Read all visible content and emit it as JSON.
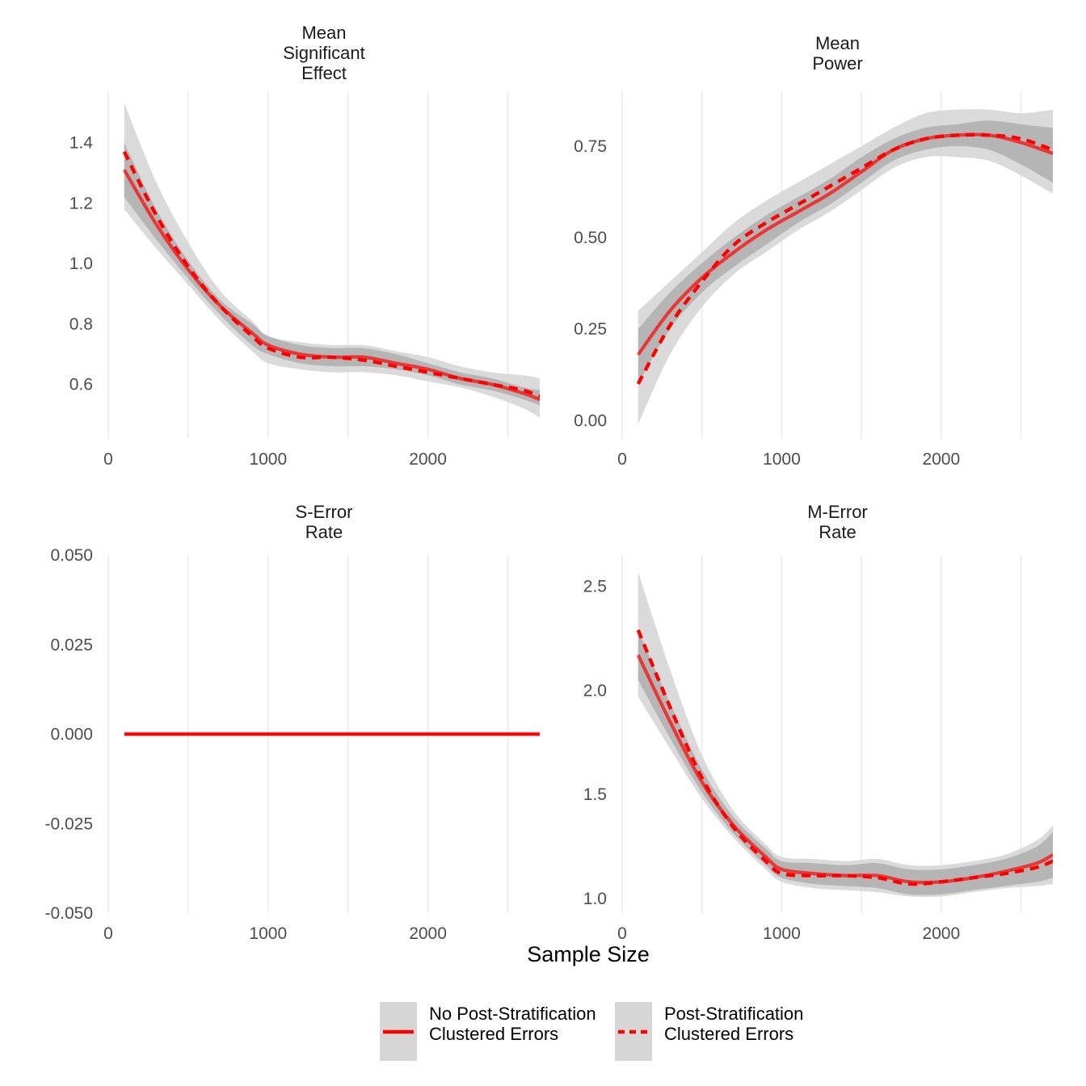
{
  "chart_data": {
    "type": "line",
    "facets": "2x2",
    "xlabel": "Sample Size",
    "colors": {
      "line": "#ff0000",
      "band_outer": "#d6d6d6",
      "band_inner": "#a8a8a8"
    },
    "legend": {
      "placement": "bottom",
      "entries": [
        {
          "lines": [
            "No Post-Stratification",
            "Clustered Errors"
          ],
          "linestyle": "solid"
        },
        {
          "lines": [
            "Post-Stratification",
            "Clustered Errors"
          ],
          "linestyle": "dashed"
        }
      ]
    },
    "panels": [
      {
        "title_lines": [
          "Mean",
          "Significant",
          "Effect"
        ],
        "xlim": [
          0,
          2700
        ],
        "ylim": [
          0.42,
          1.57
        ],
        "xticks": [
          {
            "v": 0,
            "label": "0"
          },
          {
            "v": 1000,
            "label": "1000"
          },
          {
            "v": 2000,
            "label": "2000"
          }
        ],
        "xminor": [
          500,
          1500,
          2500
        ],
        "yticks": [
          {
            "v": 0.6,
            "label": "0.6"
          },
          {
            "v": 0.8,
            "label": "0.8"
          },
          {
            "v": 1.0,
            "label": "1.0"
          },
          {
            "v": 1.2,
            "label": "1.2"
          },
          {
            "v": 1.4,
            "label": "1.4"
          }
        ],
        "series": [
          {
            "x": [
              100,
              300,
              500,
              700,
              900,
              1000,
              1200,
              1400,
              1600,
              1800,
              2000,
              2200,
              2400,
              2600,
              2700
            ],
            "y": [
              1.31,
              1.13,
              0.98,
              0.86,
              0.77,
              0.73,
              0.7,
              0.69,
              0.69,
              0.67,
              0.65,
              0.62,
              0.6,
              0.57,
              0.55
            ],
            "inner_lo": [
              1.22,
              1.08,
              0.95,
              0.83,
              0.73,
              0.7,
              0.67,
              0.66,
              0.66,
              0.65,
              0.63,
              0.6,
              0.58,
              0.55,
              0.53
            ],
            "inner_hi": [
              1.4,
              1.18,
              1.01,
              0.88,
              0.8,
              0.76,
              0.73,
              0.72,
              0.72,
              0.7,
              0.67,
              0.64,
              0.62,
              0.59,
              0.58
            ],
            "outer_lo": [
              1.18,
              1.05,
              0.93,
              0.81,
              0.71,
              0.67,
              0.65,
              0.64,
              0.64,
              0.63,
              0.61,
              0.59,
              0.56,
              0.52,
              0.49
            ],
            "outer_hi": [
              1.53,
              1.27,
              1.07,
              0.91,
              0.81,
              0.76,
              0.74,
              0.73,
              0.73,
              0.71,
              0.69,
              0.66,
              0.64,
              0.63,
              0.62
            ]
          },
          {
            "x": [
              100,
              300,
              500,
              700,
              900,
              1000,
              1200,
              1400,
              1600,
              1800,
              2000,
              2200,
              2400,
              2600,
              2700
            ],
            "y": [
              1.37,
              1.16,
              0.99,
              0.86,
              0.76,
              0.72,
              0.69,
              0.69,
              0.68,
              0.66,
              0.64,
              0.62,
              0.6,
              0.58,
              0.56
            ]
          }
        ]
      },
      {
        "title_lines": [
          "Mean",
          "Power"
        ],
        "xlim": [
          0,
          2700
        ],
        "ylim": [
          -0.05,
          0.9
        ],
        "xticks": [
          {
            "v": 0,
            "label": "0"
          },
          {
            "v": 1000,
            "label": "1000"
          },
          {
            "v": 2000,
            "label": "2000"
          }
        ],
        "xminor": [
          500,
          1500,
          2500
        ],
        "yticks": [
          {
            "v": 0.0,
            "label": "0.00"
          },
          {
            "v": 0.25,
            "label": "0.25"
          },
          {
            "v": 0.5,
            "label": "0.50"
          },
          {
            "v": 0.75,
            "label": "0.75"
          }
        ],
        "series": [
          {
            "x": [
              100,
              300,
              500,
              700,
              900,
              1100,
              1300,
              1500,
              1700,
              1900,
              2100,
              2300,
              2500,
              2700
            ],
            "y": [
              0.18,
              0.3,
              0.39,
              0.46,
              0.52,
              0.57,
              0.62,
              0.68,
              0.74,
              0.77,
              0.78,
              0.78,
              0.76,
              0.73
            ],
            "inner_lo": [
              0.1,
              0.25,
              0.35,
              0.42,
              0.48,
              0.54,
              0.59,
              0.65,
              0.71,
              0.74,
              0.75,
              0.74,
              0.7,
              0.65
            ],
            "inner_hi": [
              0.25,
              0.35,
              0.43,
              0.5,
              0.56,
              0.61,
              0.66,
              0.72,
              0.77,
              0.8,
              0.81,
              0.82,
              0.81,
              0.8
            ],
            "outer_lo": [
              -0.01,
              0.18,
              0.31,
              0.4,
              0.46,
              0.52,
              0.57,
              0.63,
              0.69,
              0.72,
              0.72,
              0.71,
              0.67,
              0.62
            ],
            "outer_hi": [
              0.3,
              0.38,
              0.46,
              0.54,
              0.6,
              0.65,
              0.7,
              0.75,
              0.8,
              0.84,
              0.85,
              0.85,
              0.84,
              0.85
            ]
          },
          {
            "x": [
              100,
              300,
              500,
              700,
              900,
              1100,
              1300,
              1500,
              1700,
              1900,
              2100,
              2300,
              2500,
              2700
            ],
            "y": [
              0.1,
              0.26,
              0.38,
              0.48,
              0.54,
              0.59,
              0.64,
              0.69,
              0.74,
              0.77,
              0.78,
              0.78,
              0.77,
              0.74
            ]
          }
        ]
      },
      {
        "title_lines": [
          "S-Error",
          "Rate"
        ],
        "xlim": [
          0,
          2700
        ],
        "ylim": [
          -0.05,
          0.05
        ],
        "xticks": [
          {
            "v": 0,
            "label": "0"
          },
          {
            "v": 1000,
            "label": "1000"
          },
          {
            "v": 2000,
            "label": "2000"
          }
        ],
        "xminor": [
          500,
          1500,
          2500
        ],
        "yticks": [
          {
            "v": -0.05,
            "label": "-0.050"
          },
          {
            "v": -0.025,
            "label": "-0.025"
          },
          {
            "v": 0.0,
            "label": "0.000"
          },
          {
            "v": 0.025,
            "label": "0.025"
          },
          {
            "v": 0.05,
            "label": "0.050"
          }
        ],
        "series": [
          {
            "x": [
              100,
              2700
            ],
            "y": [
              0.0,
              0.0
            ]
          },
          {
            "x": [
              100,
              2700
            ],
            "y": [
              0.0,
              0.0
            ]
          }
        ]
      },
      {
        "title_lines": [
          "M-Error",
          "Rate"
        ],
        "xlim": [
          0,
          2700
        ],
        "ylim": [
          0.93,
          2.65
        ],
        "xticks": [
          {
            "v": 0,
            "label": "0"
          },
          {
            "v": 1000,
            "label": "1000"
          },
          {
            "v": 2000,
            "label": "2000"
          }
        ],
        "xminor": [
          500,
          1500,
          2500
        ],
        "yticks": [
          {
            "v": 1.0,
            "label": "1.0"
          },
          {
            "v": 1.5,
            "label": "1.5"
          },
          {
            "v": 2.0,
            "label": "2.0"
          },
          {
            "v": 2.5,
            "label": "2.5"
          }
        ],
        "series": [
          {
            "x": [
              100,
              300,
              500,
              700,
              900,
              1000,
              1200,
              1400,
              1600,
              1800,
              2000,
              2200,
              2400,
              2600,
              2700
            ],
            "y": [
              2.17,
              1.85,
              1.56,
              1.35,
              1.2,
              1.14,
              1.12,
              1.11,
              1.11,
              1.08,
              1.08,
              1.1,
              1.13,
              1.17,
              1.21
            ],
            "inner_lo": [
              2.05,
              1.77,
              1.51,
              1.31,
              1.16,
              1.1,
              1.07,
              1.06,
              1.05,
              1.02,
              1.02,
              1.04,
              1.06,
              1.08,
              1.1
            ],
            "inner_hi": [
              2.29,
              1.94,
              1.62,
              1.39,
              1.24,
              1.18,
              1.17,
              1.16,
              1.17,
              1.14,
              1.14,
              1.16,
              1.19,
              1.25,
              1.32
            ],
            "outer_lo": [
              1.97,
              1.72,
              1.48,
              1.29,
              1.14,
              1.08,
              1.05,
              1.04,
              1.03,
              1.01,
              1.01,
              1.03,
              1.05,
              1.06,
              1.07
            ],
            "outer_hi": [
              2.57,
              2.1,
              1.69,
              1.42,
              1.26,
              1.2,
              1.19,
              1.18,
              1.19,
              1.16,
              1.16,
              1.18,
              1.21,
              1.28,
              1.35
            ]
          },
          {
            "x": [
              100,
              300,
              500,
              700,
              900,
              1000,
              1200,
              1400,
              1600,
              1800,
              2000,
              2200,
              2400,
              2600,
              2700
            ],
            "y": [
              2.29,
              1.92,
              1.58,
              1.34,
              1.18,
              1.12,
              1.11,
              1.11,
              1.1,
              1.07,
              1.08,
              1.1,
              1.12,
              1.15,
              1.18
            ]
          }
        ]
      }
    ]
  }
}
